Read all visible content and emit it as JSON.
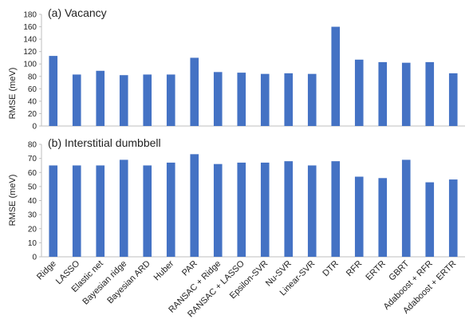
{
  "chart_data": [
    {
      "type": "bar",
      "title": "(a) Vacancy",
      "xlabel": "",
      "ylabel": "RMSE (meV)",
      "ylim": [
        0,
        180
      ],
      "yticks": [
        0,
        20,
        40,
        60,
        80,
        100,
        120,
        140,
        160,
        180
      ],
      "grid": false,
      "categories": [
        "Ridge",
        "LASSO",
        "Elastic net",
        "Bayesian ridge",
        "Bayesian ARD",
        "Huber",
        "PAR",
        "RANSAC + Ridge",
        "RANSAC + LASSO",
        "Epsilon-SVR",
        "Nu-SVR",
        "Linear-SVR",
        "DTR",
        "RFR",
        "ERTR",
        "GBRT",
        "Adaboost + RFR",
        "Adaboost + ERTR"
      ],
      "values": [
        113,
        83,
        89,
        82,
        83,
        83,
        110,
        87,
        86,
        84,
        85,
        84,
        160,
        107,
        103,
        102,
        103,
        85
      ],
      "color": "#4472c4"
    },
    {
      "type": "bar",
      "title": "(b) Interstitial dumbbell",
      "xlabel": "",
      "ylabel": "RMSE (meV)",
      "ylim": [
        0,
        80
      ],
      "yticks": [
        0,
        10,
        20,
        30,
        40,
        50,
        60,
        70,
        80
      ],
      "grid": false,
      "categories": [
        "Ridge",
        "LASSO",
        "Elastic net",
        "Bayesian ridge",
        "Bayesian ARD",
        "Huber",
        "PAR",
        "RANSAC + Ridge",
        "RANSAC + LASSO",
        "Epsilon-SVR",
        "Nu-SVR",
        "Linear-SVR",
        "DTR",
        "RFR",
        "ERTR",
        "GBRT",
        "Adaboost + RFR",
        "Adaboost + ERTR"
      ],
      "values": [
        65,
        65,
        65,
        69,
        65,
        67,
        73,
        66,
        67,
        67,
        68,
        65,
        68,
        57,
        56,
        69,
        53,
        55
      ],
      "color": "#4472c4"
    }
  ]
}
